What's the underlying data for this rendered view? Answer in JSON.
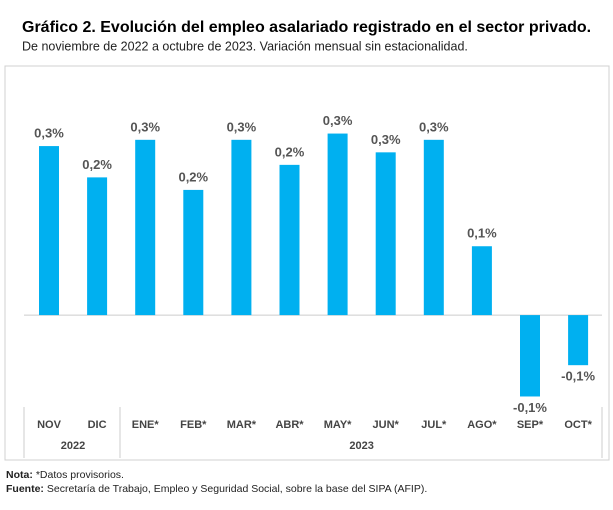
{
  "chart_data": {
    "type": "bar",
    "title": "Gráfico 2. Evolución del empleo asalariado registrado en el sector privado.",
    "subtitle": "De noviembre de 2022 a octubre de 2023. Variación mensual sin estacionalidad.",
    "color": "#00b0f0",
    "ylim": [
      -0.15,
      0.35
    ],
    "groups": [
      {
        "label": "2022",
        "categories": [
          "NOV",
          "DIC"
        ],
        "values": [
          0.27,
          0.22
        ],
        "value_labels": [
          "0,3%",
          "0,2%"
        ]
      },
      {
        "label": "2023",
        "categories": [
          "ENE*",
          "FEB*",
          "MAR*",
          "ABR*",
          "MAY*",
          "JUN*",
          "JUL*",
          "AGO*",
          "SEP*",
          "OCT*"
        ],
        "values": [
          0.28,
          0.2,
          0.28,
          0.24,
          0.29,
          0.26,
          0.28,
          0.11,
          -0.13,
          -0.08
        ],
        "value_labels": [
          "0,3%",
          "0,2%",
          "0,3%",
          "0,2%",
          "0,3%",
          "0,3%",
          "0,3%",
          "0,1%",
          "-0,1%",
          "-0,1%"
        ]
      }
    ],
    "notes": [
      {
        "label": "Nota:",
        "text": "*Datos provisorios."
      },
      {
        "label": "Fuente:",
        "text": "Secretaría de Trabajo, Empleo y Seguridad Social, sobre la base del SIPA (AFIP)."
      }
    ]
  }
}
